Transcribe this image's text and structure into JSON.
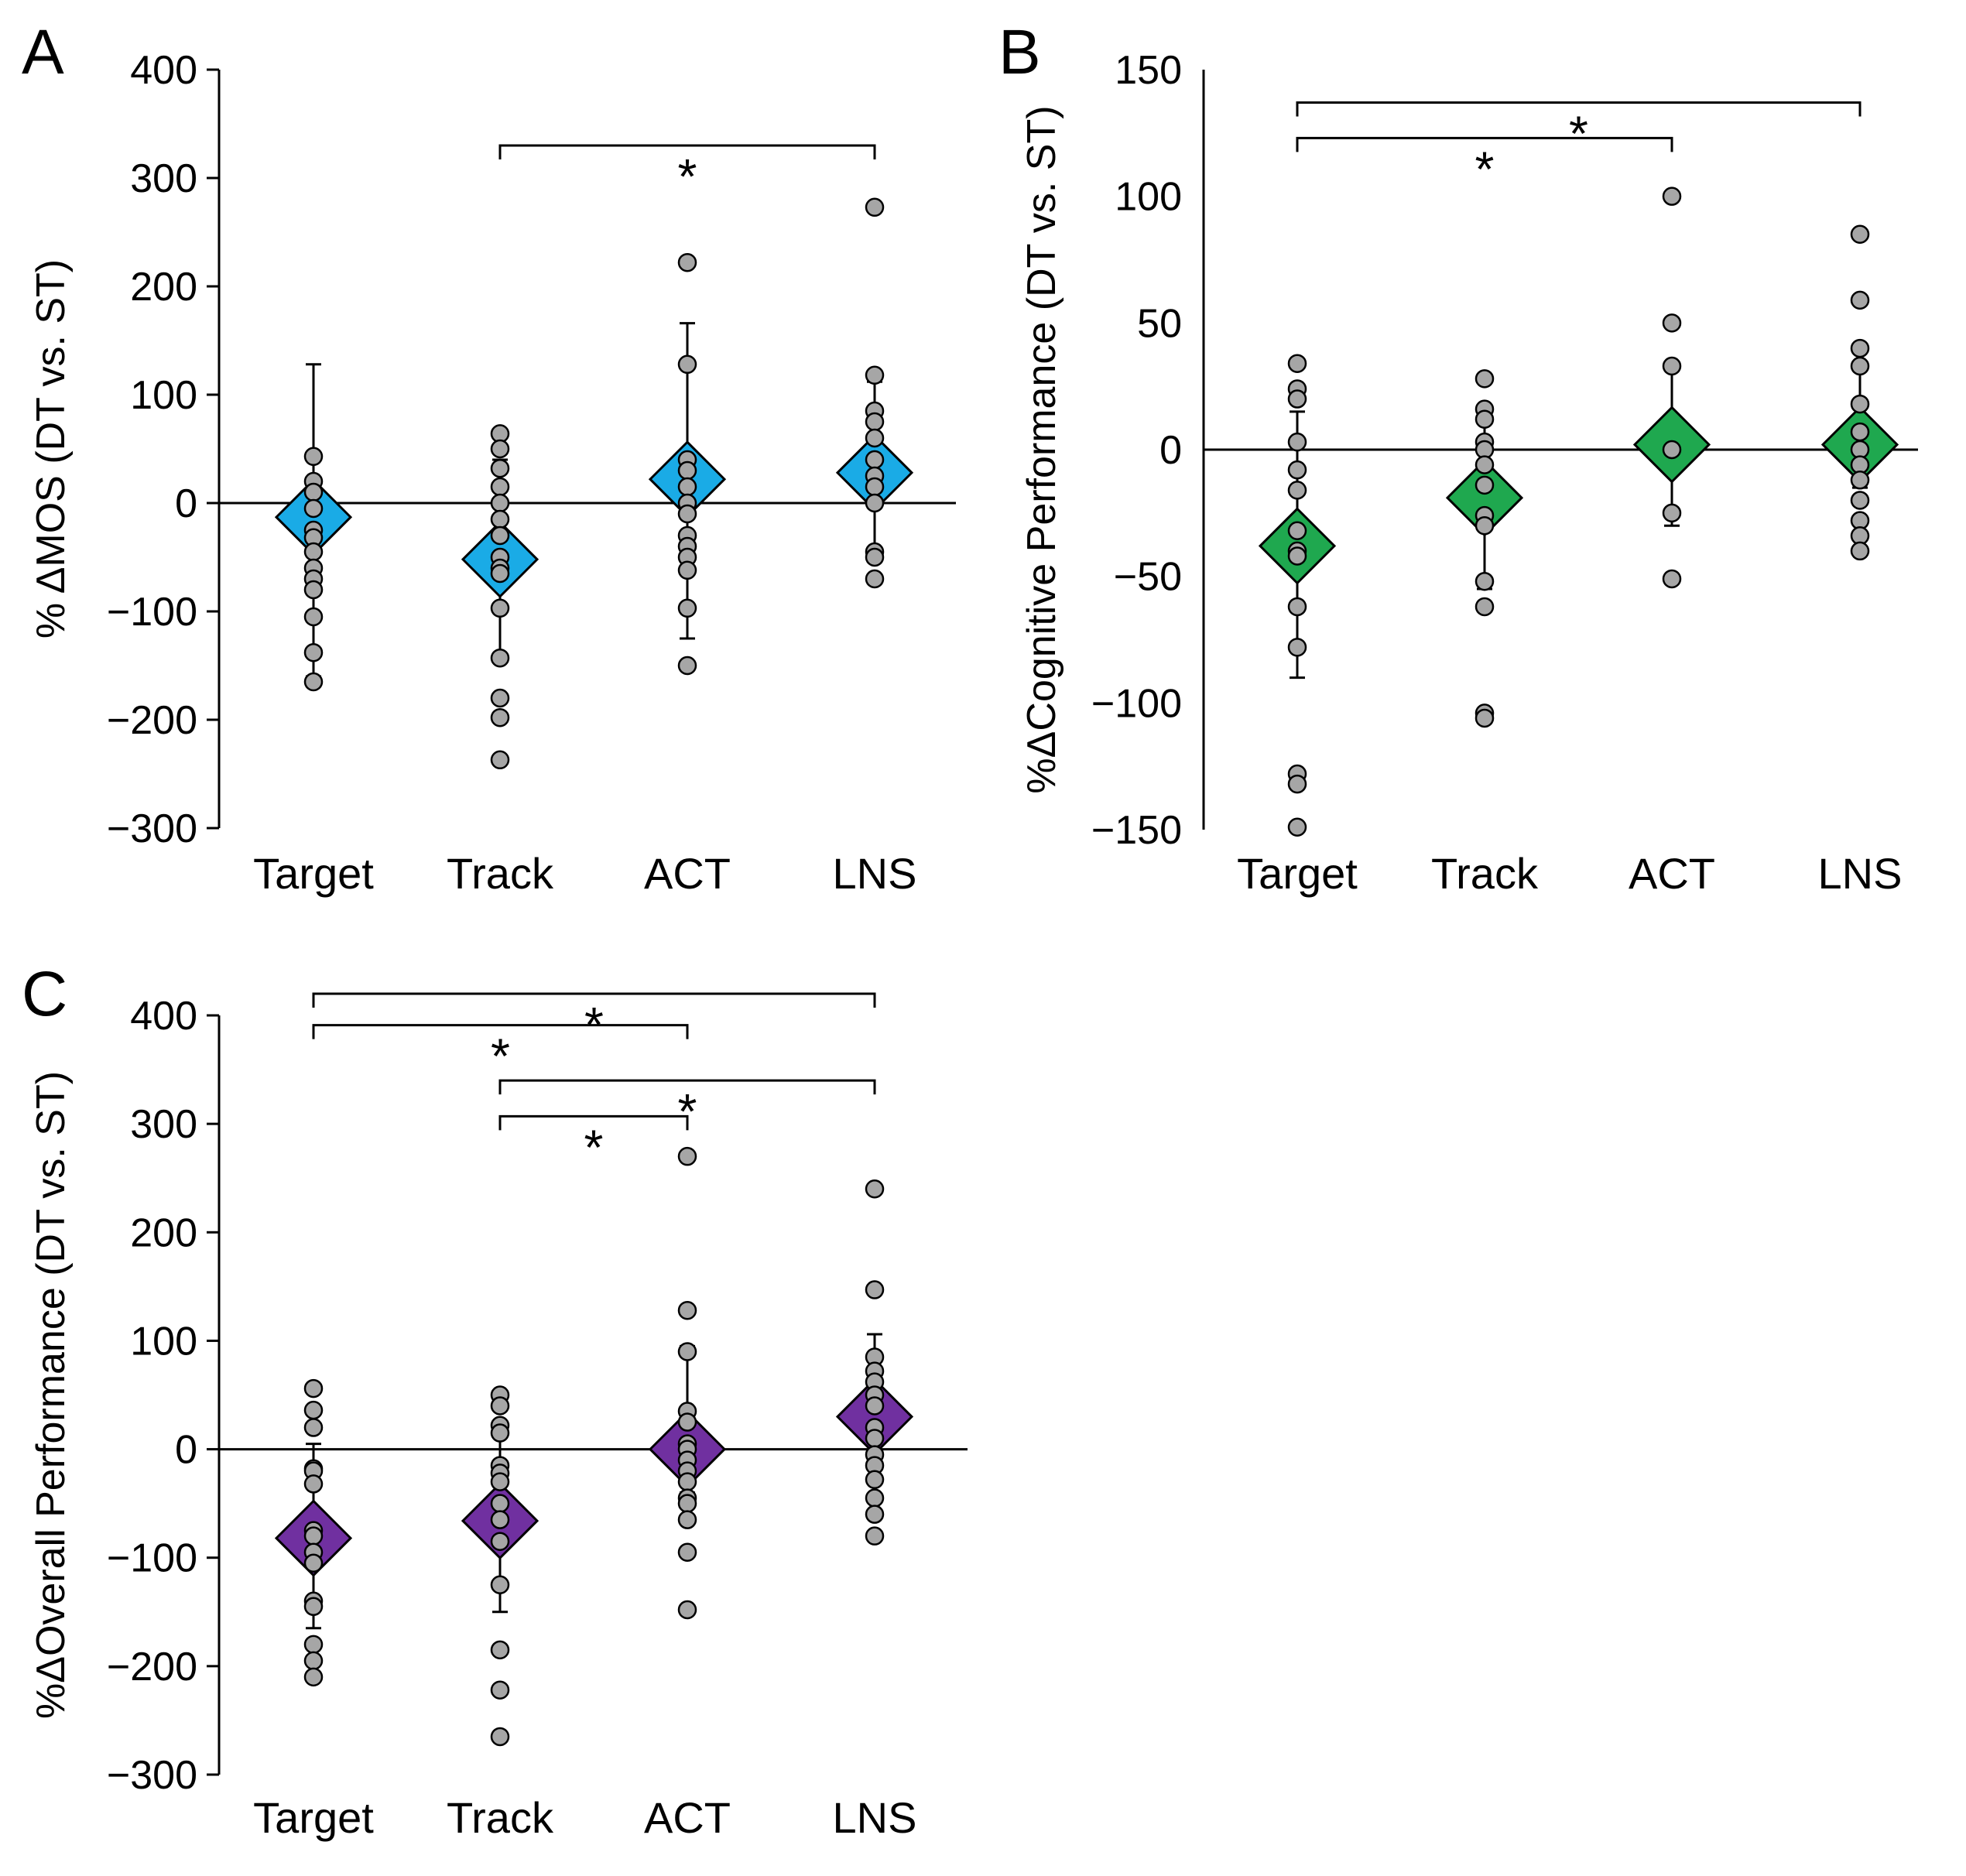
{
  "chart_data": [
    {
      "panel": "A",
      "type": "scatter",
      "ylabel": "% ΔMOS (DT vs. ST)",
      "ylim": [
        -300,
        400
      ],
      "yticks": [
        400,
        300,
        200,
        100,
        0,
        -100,
        -200,
        -300
      ],
      "ytick_labels": [
        "400",
        "300",
        "200",
        "100",
        "0",
        "−100",
        "−200",
        "−300"
      ],
      "categories": [
        "Target",
        "Track",
        "ACT",
        "LNS"
      ],
      "mean_color": "#1aabe6",
      "means": [
        -13,
        -52,
        22,
        28
      ],
      "error_low": [
        -160,
        -140,
        -125,
        -50
      ],
      "error_high": [
        128,
        40,
        166,
        112
      ],
      "points": [
        [
          43,
          20,
          10,
          -5,
          -25,
          -32,
          -45,
          -60,
          -70,
          -80,
          -105,
          -138,
          -165
        ],
        [
          64,
          50,
          32,
          15,
          0,
          -15,
          -30,
          -50,
          -60,
          -65,
          -97,
          -143,
          -180,
          -198,
          -237
        ],
        [
          222,
          128,
          40,
          30,
          15,
          0,
          -10,
          -30,
          -40,
          -50,
          -62,
          -97,
          -150
        ],
        [
          273,
          118,
          85,
          75,
          60,
          40,
          25,
          15,
          0,
          -45,
          -50,
          -70
        ]
      ],
      "significance": [
        {
          "from": "Track",
          "to": "LNS",
          "level": 330,
          "label": "*"
        }
      ]
    },
    {
      "panel": "B",
      "type": "scatter",
      "ylabel": "%ΔCognitive Performance (DT vs. ST)",
      "ylim": [
        -150,
        150
      ],
      "yticks": [
        150,
        100,
        50,
        0,
        -50,
        -100,
        -150
      ],
      "ytick_labels": [
        "150",
        "100",
        "50",
        "0",
        "−50",
        "−100",
        "−150"
      ],
      "categories": [
        "Target",
        "Track",
        "ACT",
        "LNS"
      ],
      "mean_color": "#1fa84f",
      "means": [
        -38,
        -19,
        2,
        2
      ],
      "error_low": [
        -90,
        -55,
        -30,
        -15
      ],
      "error_high": [
        15,
        17,
        33,
        33
      ],
      "points": [
        [
          34,
          24,
          20,
          3,
          -8,
          -16,
          -32,
          -40,
          -42,
          -62,
          -78,
          -128,
          -132,
          -149
        ],
        [
          28,
          16,
          12,
          3,
          0,
          -6,
          -14,
          -26,
          -30,
          -52,
          -62,
          -104,
          -106
        ],
        [
          100,
          50,
          33,
          0,
          -25,
          -51
        ],
        [
          85,
          59,
          40,
          33,
          18,
          7,
          0,
          -6,
          -12,
          -20,
          -28,
          -34,
          -40
        ]
      ],
      "significance": [
        {
          "from": "Target",
          "to": "LNS",
          "level": 137,
          "label": "*"
        },
        {
          "from": "Target",
          "to": "ACT",
          "level": 123,
          "label": "*"
        }
      ]
    },
    {
      "panel": "C",
      "type": "scatter",
      "ylabel": "%ΔOverall Performance (DT vs. ST)",
      "ylim": [
        -300,
        400
      ],
      "yticks": [
        400,
        300,
        200,
        100,
        0,
        -100,
        -200,
        -300
      ],
      "ytick_labels": [
        "400",
        "300",
        "200",
        "100",
        "0",
        "−100",
        "−200",
        "−300"
      ],
      "categories": [
        "Target",
        "Track",
        "ACT",
        "LNS"
      ],
      "mean_color": "#7030a0",
      "means": [
        -82,
        -66,
        0,
        30
      ],
      "error_low": [
        -165,
        -150,
        -40,
        -30
      ],
      "error_high": [
        5,
        15,
        95,
        106
      ],
      "points": [
        [
          56,
          36,
          20,
          -18,
          -20,
          -32,
          -75,
          -80,
          -95,
          -105,
          -140,
          -145,
          -180,
          -195,
          -210
        ],
        [
          50,
          40,
          22,
          15,
          -15,
          -22,
          -30,
          -50,
          -65,
          -85,
          -125,
          -185,
          -222,
          -265
        ],
        [
          270,
          128,
          90,
          35,
          25,
          5,
          0,
          -10,
          -20,
          -30,
          -45,
          -50,
          -65,
          -95,
          -148
        ],
        [
          240,
          147,
          85,
          72,
          62,
          50,
          40,
          20,
          10,
          -5,
          -15,
          -28,
          -45,
          -60,
          -80
        ]
      ],
      "significance": [
        {
          "from": "Target",
          "to": "LNS",
          "level": 420,
          "label": "*"
        },
        {
          "from": "Target",
          "to": "ACT",
          "level": 391,
          "label": "*"
        },
        {
          "from": "Track",
          "to": "LNS",
          "level": 340,
          "label": "*"
        },
        {
          "from": "Track",
          "to": "ACT",
          "level": 307,
          "label": "*"
        }
      ]
    }
  ]
}
